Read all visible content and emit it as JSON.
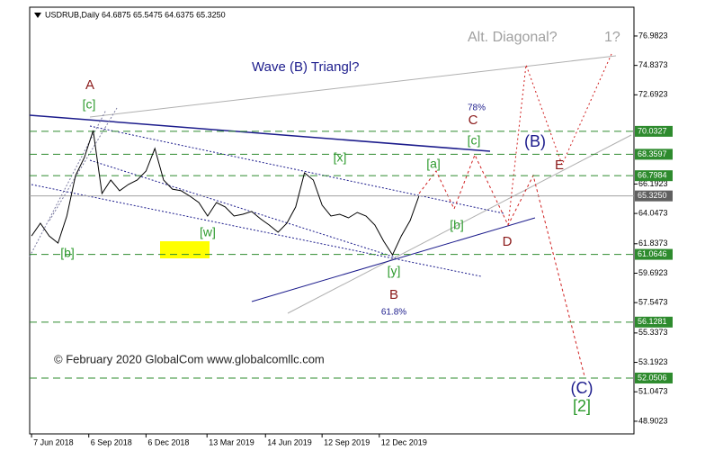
{
  "chart_data": {
    "type": "line",
    "title": "USDRUB,Daily  64.6875 65.5475 64.6375 65.3250",
    "x": [
      "2018-06-07",
      "2018-06-21",
      "2018-07-05",
      "2018-07-19",
      "2018-08-02",
      "2018-08-16",
      "2018-08-30",
      "2018-09-13",
      "2018-09-27",
      "2018-10-11",
      "2018-10-25",
      "2018-11-08",
      "2018-11-22",
      "2018-12-06",
      "2018-12-20",
      "2019-01-03",
      "2019-01-17",
      "2019-01-31",
      "2019-02-14",
      "2019-02-28",
      "2019-03-14",
      "2019-03-28",
      "2019-04-11",
      "2019-04-25",
      "2019-05-09",
      "2019-05-23",
      "2019-06-06",
      "2019-06-20",
      "2019-07-04",
      "2019-07-18",
      "2019-08-01",
      "2019-08-15",
      "2019-08-29",
      "2019-09-12",
      "2019-09-26",
      "2019-10-10",
      "2019-10-24",
      "2019-11-07",
      "2019-11-21",
      "2019-12-05",
      "2019-12-19",
      "2020-01-02",
      "2020-01-16",
      "2020-01-30",
      "2020-02-13"
    ],
    "series": [
      {
        "name": "USDRUB",
        "color": "#000000",
        "values": [
          62.41,
          63.33,
          62.41,
          61.89,
          63.86,
          66.81,
          68.12,
          70.09,
          65.5,
          66.48,
          65.7,
          66.16,
          66.48,
          67.14,
          68.78,
          66.48,
          65.82,
          65.7,
          65.3,
          64.84,
          63.86,
          64.84,
          64.52,
          63.86,
          63.99,
          64.19,
          63.66,
          63.2,
          62.68,
          63.33,
          64.52,
          67.01,
          66.48,
          64.65,
          63.86,
          63.99,
          63.73,
          64.12,
          63.86,
          63.2,
          62.02,
          61.03,
          62.41,
          63.53,
          65.3
        ]
      }
    ],
    "xlim": [
      "2018-06-04",
      "2021-01-20"
    ],
    "xticks": [
      {
        "value": "2018-06-07",
        "label": "7 Jun 2018"
      },
      {
        "value": "2018-09-06",
        "label": "6 Sep 2018"
      },
      {
        "value": "2018-12-06",
        "label": "6 Dec 2018"
      },
      {
        "value": "2019-03-13",
        "label": "13 Mar 2019"
      },
      {
        "value": "2019-06-14",
        "label": "14 Jun 2019"
      },
      {
        "value": "2019-09-12",
        "label": "12 Sep 2019"
      },
      {
        "value": "2019-12-12",
        "label": "12 Dec 2019"
      }
    ],
    "ylim": [
      47.98,
      79.08
    ],
    "yticks": [
      76.9823,
      74.8373,
      72.6923,
      66.1923,
      64.0473,
      61.8373,
      59.6923,
      57.5473,
      55.3373,
      53.1923,
      51.0473,
      48.9023
    ],
    "levels": [
      70.0327,
      68.3597,
      66.7984,
      61.0646,
      56.1281,
      52.0506
    ],
    "level_color": "#2e8b2e",
    "current_price": {
      "value": 65.325,
      "label": "65.3250"
    },
    "current_color": "#a0a0a0",
    "annotations": [
      {
        "text": "Alt. Diagonal?",
        "color": "#a0a0a0"
      },
      {
        "text": "1?",
        "color": "#a0a0a0"
      },
      {
        "text": "Wave (B) Triangl?",
        "color": "#1c1c8c"
      },
      {
        "text": "A",
        "color": "#8b1a1a"
      },
      {
        "text": "[c]",
        "color": "#2e9b2e"
      },
      {
        "text": "78%",
        "color": "#1c1c8c"
      },
      {
        "text": "C",
        "color": "#8b1a1a"
      },
      {
        "text": "[c]",
        "color": "#2e9b2e"
      },
      {
        "text": "(B)",
        "color": "#1c1c8c"
      },
      {
        "text": "E",
        "color": "#8b1a1a"
      },
      {
        "text": "[x]",
        "color": "#2e9b2e"
      },
      {
        "text": "[a]",
        "color": "#2e9b2e"
      },
      {
        "text": "[b]",
        "color": "#2e9b2e"
      },
      {
        "text": "[w]",
        "color": "#2e9b2e"
      },
      {
        "text": "D",
        "color": "#8b1a1a"
      },
      {
        "text": "[b]",
        "color": "#2e9b2e"
      },
      {
        "text": "[y]",
        "color": "#2e9b2e"
      },
      {
        "text": "B",
        "color": "#8b1a1a"
      },
      {
        "text": "61.8%",
        "color": "#1c1c8c"
      },
      {
        "text": "© February 2020 GlobalCom www.globalcomllc.com",
        "color": "#222222"
      },
      {
        "text": "(C)",
        "color": "#1c1c8c"
      },
      {
        "text": "[2]",
        "color": "#2e9b2e"
      }
    ]
  }
}
